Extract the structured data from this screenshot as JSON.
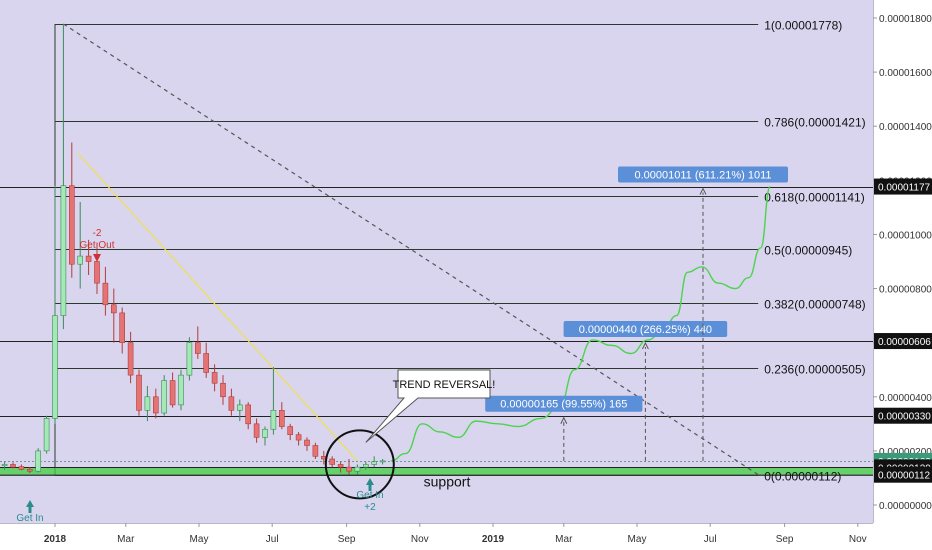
{
  "chart_data": {
    "type": "candlestick",
    "title": "",
    "xlabel": "",
    "ylabel": "",
    "background": "#d9d5ee",
    "grid": false,
    "y_axis": {
      "position": "right",
      "range": [
        -8e-08,
        1.85e-05
      ],
      "ticks": [
        "0.00001800",
        "0.00001600",
        "0.00001400",
        "0.00001200",
        "0.00001000",
        "0.00000800",
        "0.00000600",
        "0.00000400",
        "0.00000200",
        "0.00000000"
      ]
    },
    "x_axis": {
      "ticks": [
        {
          "label": "2018",
          "bold": true,
          "date": "2018-01-01"
        },
        {
          "label": "Mar",
          "bold": false,
          "date": "2018-03-01"
        },
        {
          "label": "May",
          "bold": false,
          "date": "2018-05-01"
        },
        {
          "label": "Jul",
          "bold": false,
          "date": "2018-07-01"
        },
        {
          "label": "Sep",
          "bold": false,
          "date": "2018-09-01"
        },
        {
          "label": "Nov",
          "bold": false,
          "date": "2018-11-01"
        },
        {
          "label": "2019",
          "bold": true,
          "date": "2019-01-01"
        },
        {
          "label": "Mar",
          "bold": false,
          "date": "2019-03-01"
        },
        {
          "label": "May",
          "bold": false,
          "date": "2019-05-01"
        },
        {
          "label": "Jul",
          "bold": false,
          "date": "2019-07-01"
        },
        {
          "label": "Sep",
          "bold": false,
          "date": "2019-09-01"
        },
        {
          "label": "Nov",
          "bold": false,
          "date": "2019-11-01"
        }
      ]
    },
    "price_tags": [
      {
        "label": "0.00001177",
        "value": 1.177e-05,
        "style": "dark"
      },
      {
        "label": "0.00000606",
        "value": 6.06e-06,
        "style": "dark"
      },
      {
        "label": "0.00000330",
        "value": 3.3e-06,
        "style": "dark"
      },
      {
        "label": "0.00000163",
        "value": 1.63e-06,
        "style": "green"
      },
      {
        "label": "0.00000139",
        "value": 1.39e-06,
        "style": "dark"
      },
      {
        "label": "0.00000112",
        "value": 1.12e-06,
        "style": "dark"
      }
    ],
    "fib_levels": [
      {
        "label": "1(0.00001778)",
        "value": 1.778e-05
      },
      {
        "label": "0.786(0.00001421)",
        "value": 1.421e-05
      },
      {
        "label": "0.618(0.00001141)",
        "value": 1.141e-05
      },
      {
        "label": "0.5(0.00000945)",
        "value": 9.45e-06
      },
      {
        "label": "0.382(0.00000748)",
        "value": 7.48e-06
      },
      {
        "label": "0.236(0.00000505)",
        "value": 5.05e-06
      },
      {
        "label": "0(0.00000112)",
        "value": 1.12e-06
      }
    ],
    "targets": [
      {
        "label": "0.00000165 (99.55%) 165",
        "value": 3.3e-06,
        "date": "2019-03-01"
      },
      {
        "label": "0.00000440 (266.25%) 440",
        "value": 6.06e-06,
        "date": "2019-05-08"
      },
      {
        "label": "0.00001011 (611.21%) 1011",
        "value": 1.177e-05,
        "date": "2019-06-25"
      }
    ],
    "annotations": {
      "trend_reversal": "TREND REVERSAL!",
      "support": "support",
      "get_in_left": "Get In",
      "get_in_right": "Get In",
      "get_in_right_sub": "+2",
      "get_out": "Get Out",
      "get_out_sub": "-2"
    },
    "candles": [
      {
        "date": "2017-11-20",
        "o": 1.45e-06,
        "h": 1.6e-06,
        "l": 1.3e-06,
        "c": 1.5e-06
      },
      {
        "date": "2017-11-27",
        "o": 1.5e-06,
        "h": 1.58e-06,
        "l": 1.35e-06,
        "c": 1.4e-06
      },
      {
        "date": "2017-12-04",
        "o": 1.42e-06,
        "h": 1.5e-06,
        "l": 1.28e-06,
        "c": 1.32e-06
      },
      {
        "date": "2017-12-11",
        "o": 1.32e-06,
        "h": 1.4e-06,
        "l": 1.18e-06,
        "c": 1.25e-06
      },
      {
        "date": "2017-12-18",
        "o": 1.25e-06,
        "h": 2.1e-06,
        "l": 1.2e-06,
        "c": 2e-06
      },
      {
        "date": "2017-12-25",
        "o": 2e-06,
        "h": 3.3e-06,
        "l": 1.9e-06,
        "c": 3.2e-06
      },
      {
        "date": "2018-01-01",
        "o": 3.2e-06,
        "h": 1.18e-05,
        "l": 3e-06,
        "c": 7e-06
      },
      {
        "date": "2018-01-08",
        "o": 7e-06,
        "h": 1.778e-05,
        "l": 6.5e-06,
        "c": 1.18e-05
      },
      {
        "date": "2018-01-15",
        "o": 1.18e-05,
        "h": 1.34e-05,
        "l": 8.4e-06,
        "c": 8.9e-06
      },
      {
        "date": "2018-01-22",
        "o": 8.9e-06,
        "h": 1.12e-05,
        "l": 8e-06,
        "c": 9.2e-06
      },
      {
        "date": "2018-01-29",
        "o": 9.2e-06,
        "h": 9.8e-06,
        "l": 8.5e-06,
        "c": 9e-06
      },
      {
        "date": "2018-02-05",
        "o": 9e-06,
        "h": 9.7e-06,
        "l": 7.8e-06,
        "c": 8.2e-06
      },
      {
        "date": "2018-02-12",
        "o": 8.2e-06,
        "h": 8.8e-06,
        "l": 7e-06,
        "c": 7.4e-06
      },
      {
        "date": "2018-02-19",
        "o": 7.4e-06,
        "h": 8e-06,
        "l": 6e-06,
        "c": 7.1e-06
      },
      {
        "date": "2018-02-26",
        "o": 7.1e-06,
        "h": 7.3e-06,
        "l": 5.6e-06,
        "c": 6e-06
      },
      {
        "date": "2018-03-05",
        "o": 6e-06,
        "h": 6.4e-06,
        "l": 4.5e-06,
        "c": 4.8e-06
      },
      {
        "date": "2018-03-12",
        "o": 4.8e-06,
        "h": 5e-06,
        "l": 3.3e-06,
        "c": 3.5e-06
      },
      {
        "date": "2018-03-19",
        "o": 3.5e-06,
        "h": 4.4e-06,
        "l": 3.1e-06,
        "c": 4e-06
      },
      {
        "date": "2018-03-26",
        "o": 4e-06,
        "h": 4.3e-06,
        "l": 3.2e-06,
        "c": 3.4e-06
      },
      {
        "date": "2018-04-02",
        "o": 3.4e-06,
        "h": 4.8e-06,
        "l": 3.3e-06,
        "c": 4.6e-06
      },
      {
        "date": "2018-04-09",
        "o": 4.6e-06,
        "h": 4.9e-06,
        "l": 3.6e-06,
        "c": 3.7e-06
      },
      {
        "date": "2018-04-16",
        "o": 3.7e-06,
        "h": 5e-06,
        "l": 3.5e-06,
        "c": 4.8e-06
      },
      {
        "date": "2018-04-23",
        "o": 4.8e-06,
        "h": 6.2e-06,
        "l": 4.6e-06,
        "c": 6e-06
      },
      {
        "date": "2018-04-30",
        "o": 6e-06,
        "h": 6.6e-06,
        "l": 5.4e-06,
        "c": 5.6e-06
      },
      {
        "date": "2018-05-07",
        "o": 5.6e-06,
        "h": 6e-06,
        "l": 4.7e-06,
        "c": 4.9e-06
      },
      {
        "date": "2018-05-14",
        "o": 4.9e-06,
        "h": 5.2e-06,
        "l": 4.2e-06,
        "c": 4.5e-06
      },
      {
        "date": "2018-05-21",
        "o": 4.5e-06,
        "h": 4.8e-06,
        "l": 3.7e-06,
        "c": 4e-06
      },
      {
        "date": "2018-05-28",
        "o": 4e-06,
        "h": 4.3e-06,
        "l": 3.3e-06,
        "c": 3.5e-06
      },
      {
        "date": "2018-06-04",
        "o": 3.5e-06,
        "h": 3.9e-06,
        "l": 3.1e-06,
        "c": 3.7e-06
      },
      {
        "date": "2018-06-11",
        "o": 3.7e-06,
        "h": 3.8e-06,
        "l": 2.8e-06,
        "c": 3e-06
      },
      {
        "date": "2018-06-18",
        "o": 3e-06,
        "h": 3.2e-06,
        "l": 2.3e-06,
        "c": 2.5e-06
      },
      {
        "date": "2018-06-25",
        "o": 2.5e-06,
        "h": 2.9e-06,
        "l": 2.2e-06,
        "c": 2.8e-06
      },
      {
        "date": "2018-07-02",
        "o": 2.8e-06,
        "h": 5.1e-06,
        "l": 2.6e-06,
        "c": 3.5e-06
      },
      {
        "date": "2018-07-09",
        "o": 3.5e-06,
        "h": 3.8e-06,
        "l": 2.8e-06,
        "c": 2.9e-06
      },
      {
        "date": "2018-07-16",
        "o": 2.9e-06,
        "h": 3e-06,
        "l": 2.4e-06,
        "c": 2.6e-06
      },
      {
        "date": "2018-07-23",
        "o": 2.6e-06,
        "h": 2.7e-06,
        "l": 2.2e-06,
        "c": 2.4e-06
      },
      {
        "date": "2018-07-30",
        "o": 2.4e-06,
        "h": 2.5e-06,
        "l": 2e-06,
        "c": 2.2e-06
      },
      {
        "date": "2018-08-06",
        "o": 2.2e-06,
        "h": 2.3e-06,
        "l": 1.7e-06,
        "c": 1.8e-06
      },
      {
        "date": "2018-08-13",
        "o": 1.8e-06,
        "h": 2e-06,
        "l": 1.5e-06,
        "c": 1.7e-06
      },
      {
        "date": "2018-08-20",
        "o": 1.7e-06,
        "h": 1.8e-06,
        "l": 1.4e-06,
        "c": 1.5e-06
      },
      {
        "date": "2018-08-27",
        "o": 1.5e-06,
        "h": 1.6e-06,
        "l": 1.2e-06,
        "c": 1.4e-06
      },
      {
        "date": "2018-09-03",
        "o": 1.4e-06,
        "h": 1.7e-06,
        "l": 1.12e-06,
        "c": 1.25e-06
      },
      {
        "date": "2018-09-10",
        "o": 1.25e-06,
        "h": 1.5e-06,
        "l": 1.12e-06,
        "c": 1.4e-06
      },
      {
        "date": "2018-09-17",
        "o": 1.4e-06,
        "h": 1.6e-06,
        "l": 1.3e-06,
        "c": 1.5e-06
      },
      {
        "date": "2018-09-24",
        "o": 1.5e-06,
        "h": 1.8e-06,
        "l": 1.4e-06,
        "c": 1.6e-06
      },
      {
        "date": "2018-10-01",
        "o": 1.6e-06,
        "h": 1.7e-06,
        "l": 1.5e-06,
        "c": 1.63e-06
      }
    ],
    "projection": [
      {
        "date": "2018-10-08",
        "y": 1.63e-06
      },
      {
        "date": "2018-10-20",
        "y": 1.9e-06
      },
      {
        "date": "2018-11-03",
        "y": 3e-06
      },
      {
        "date": "2018-11-18",
        "y": 2.7e-06
      },
      {
        "date": "2018-12-03",
        "y": 2.5e-06
      },
      {
        "date": "2018-12-18",
        "y": 3.1e-06
      },
      {
        "date": "2019-01-05",
        "y": 3e-06
      },
      {
        "date": "2019-01-22",
        "y": 2.9e-06
      },
      {
        "date": "2019-02-10",
        "y": 3.2e-06
      },
      {
        "date": "2019-02-25",
        "y": 3.6e-06
      },
      {
        "date": "2019-03-10",
        "y": 5e-06
      },
      {
        "date": "2019-03-25",
        "y": 6.1e-06
      },
      {
        "date": "2019-04-10",
        "y": 5.9e-06
      },
      {
        "date": "2019-04-26",
        "y": 5.6e-06
      },
      {
        "date": "2019-05-10",
        "y": 6.1e-06
      },
      {
        "date": "2019-05-22",
        "y": 6.4e-06
      },
      {
        "date": "2019-06-03",
        "y": 7e-06
      },
      {
        "date": "2019-06-12",
        "y": 8.6e-06
      },
      {
        "date": "2019-06-24",
        "y": 8.8e-06
      },
      {
        "date": "2019-07-08",
        "y": 8.2e-06
      },
      {
        "date": "2019-07-22",
        "y": 8e-06
      },
      {
        "date": "2019-08-02",
        "y": 8.4e-06
      },
      {
        "date": "2019-08-12",
        "y": 9.5e-06
      },
      {
        "date": "2019-08-20",
        "y": 1.177e-05
      }
    ],
    "diagonal_line": {
      "from": {
        "date": "2018-01-08",
        "y": 1.778e-05
      },
      "to": {
        "date": "2019-08-10",
        "y": 1.12e-06
      }
    },
    "yellow_trendline": {
      "from": {
        "date": "2018-01-20",
        "y": 1.3e-05
      },
      "to": {
        "date": "2018-09-10",
        "y": 1.63e-06
      }
    },
    "support_zone": {
      "from": 1.12e-06,
      "to": 1.39e-06
    },
    "colors": {
      "bull": "#a3e8b5",
      "bull_border": "#3c8b5b",
      "bear": "#e57373",
      "bear_border": "#b33a3a",
      "fib_line": "#2b3a2b",
      "projection": "#4cd44c",
      "yellow": "#f0e050",
      "diagonal": "#555555",
      "support_green": "#3fcf3f",
      "target_box": "#5b8fd8",
      "dark_tag": "#111111",
      "green_tag": "#3a9a7a",
      "arrow_teal": "#2b8c8c",
      "arrow_red": "#d03030"
    }
  }
}
